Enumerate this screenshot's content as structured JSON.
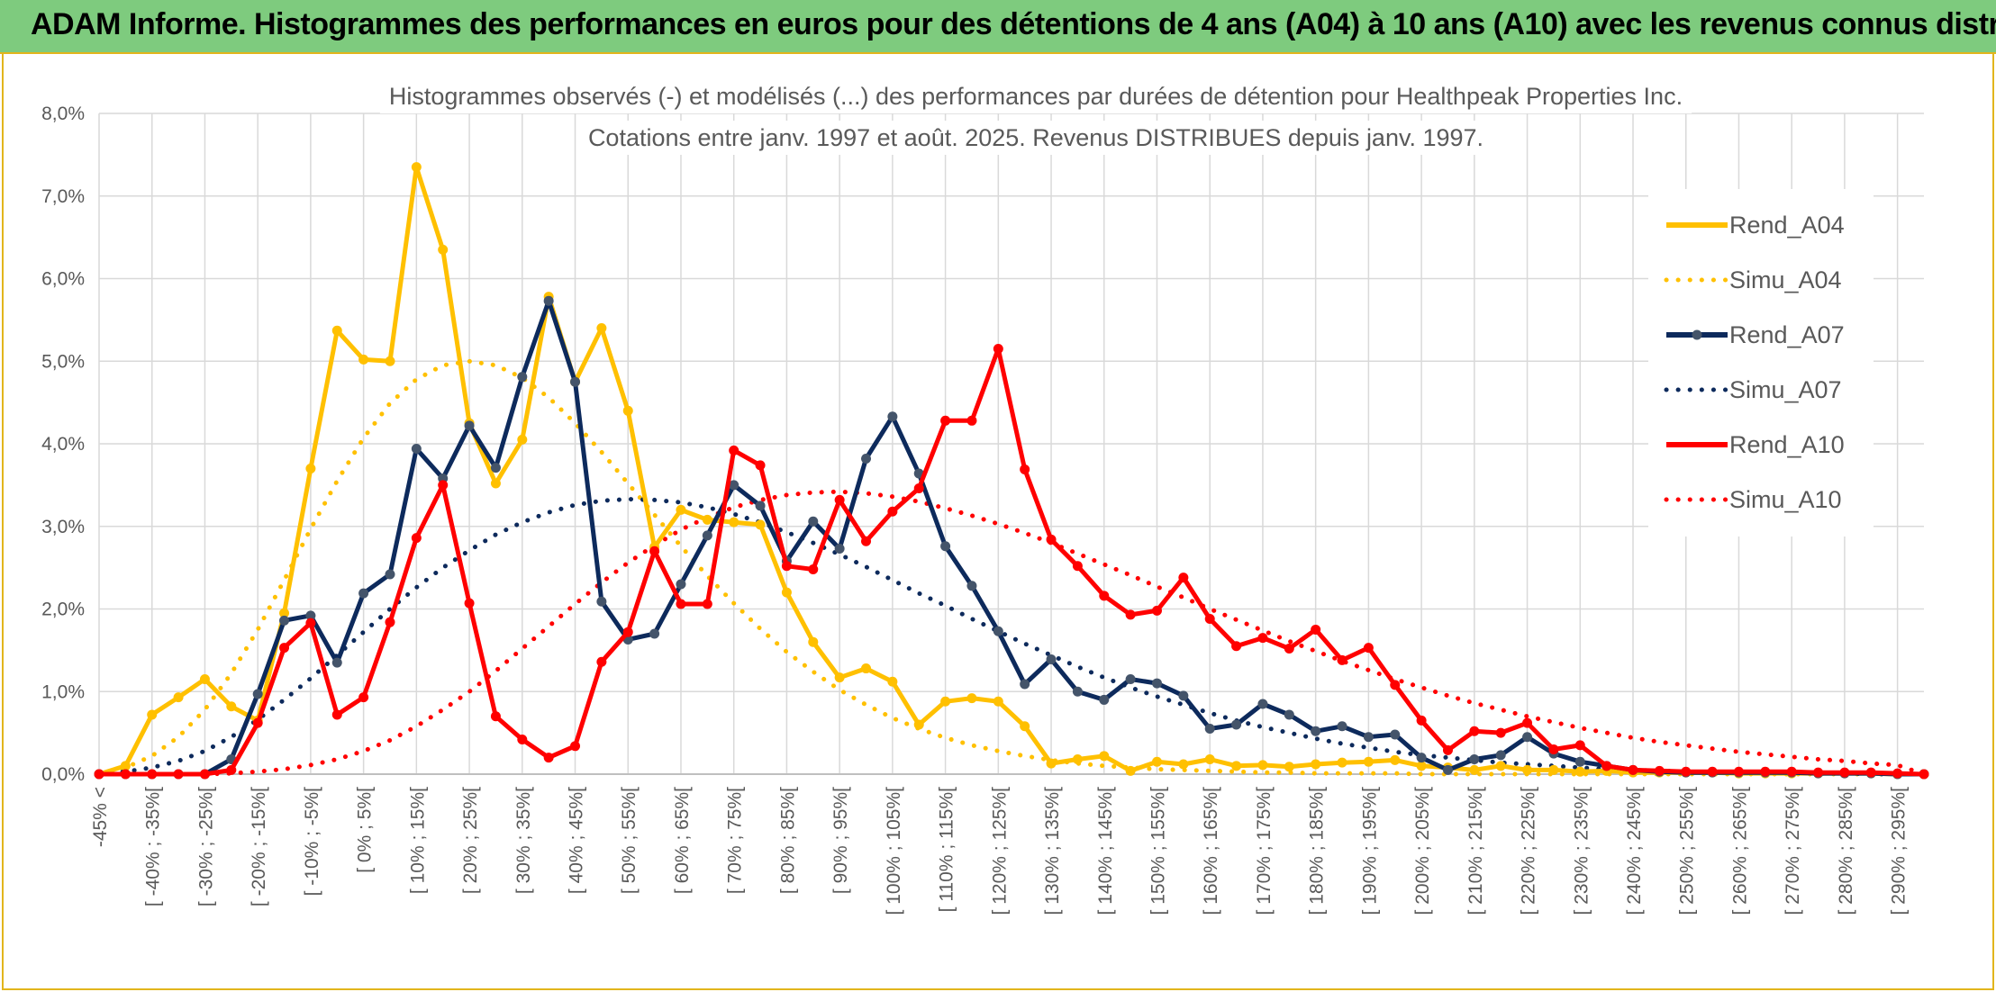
{
  "banner": {
    "title": "ADAM Informe. Histogrammes des performances en euros pour des détentions de 4 ans (A04) à 10 ans (A10) avec les revenus connus distribués"
  },
  "chart_data": {
    "type": "line",
    "title": "Histogrammes observés (-) et modélisés (...) des performances par durées de détention pour Healthpeak Properties Inc.",
    "subtitle": "Cotations entre janv. 1997 et août. 2025. Revenus DISTRIBUES depuis janv. 1997.",
    "ylim": [
      0,
      8
    ],
    "yticks": [
      "0,0%",
      "1,0%",
      "2,0%",
      "3,0%",
      "4,0%",
      "5,0%",
      "6,0%",
      "7,0%",
      "8,0%"
    ],
    "x_tick_labels": [
      "-45% <",
      "[ -40% ; -35%[",
      "[ -30% ; -25%[",
      "[ -20% ; -15%[",
      "[ -10% ; -5%[",
      "[ 0% ; 5%[",
      "[ 10% ; 15%[",
      "[ 20% ; 25%[",
      "[ 30% ; 35%[",
      "[ 40% ; 45%[",
      "[ 50% ; 55%[",
      "[ 60% ; 65%[",
      "[ 70% ; 75%[",
      "[ 80% ; 85%[",
      "[ 90% ; 95%[",
      "[ 100% ; 105%[",
      "[ 110% ; 115%[",
      "[ 120% ; 125%[",
      "[ 130% ; 135%[",
      "[ 140% ; 145%[",
      "[ 150% ; 155%[",
      "[ 160% ; 165%[",
      "[ 170% ; 175%[",
      "[ 180% ; 185%[",
      "[ 190% ; 195%[",
      "[ 200% ; 205%[",
      "[ 210% ; 215%[",
      "[ 220% ; 225%[",
      "[ 230% ; 235%[",
      "[ 240% ; 245%[",
      "[ 250% ; 255%[",
      "[ 260% ; 265%[",
      "[ 270% ; 275%[",
      "[ 280% ; 285%[",
      "[ 290% ; 295%["
    ],
    "grid": true,
    "legend": "right",
    "series": [
      {
        "name": "Rend_A04",
        "color": "#ffc000",
        "style": "solid",
        "values": [
          0.0,
          0.1,
          0.72,
          0.93,
          1.15,
          0.82,
          0.65,
          1.95,
          3.7,
          5.37,
          5.02,
          5.0,
          7.35,
          6.35,
          4.25,
          3.52,
          4.05,
          5.78,
          4.75,
          5.4,
          4.4,
          2.75,
          3.2,
          3.08,
          3.05,
          3.02,
          2.2,
          1.6,
          1.17,
          1.28,
          1.12,
          0.6,
          0.88,
          0.92,
          0.88,
          0.58,
          0.13,
          0.18,
          0.22,
          0.04,
          0.15,
          0.12,
          0.18,
          0.1,
          0.11,
          0.09,
          0.12,
          0.14,
          0.15,
          0.17,
          0.1,
          0.08,
          0.05,
          0.1,
          0.05,
          0.05,
          0.03,
          0.04,
          0.02,
          0.02,
          0.02,
          0.02,
          0.01,
          0.01,
          0.01,
          0.01,
          0.01,
          0.01,
          0.0,
          0.0
        ]
      },
      {
        "name": "Simu_A04",
        "color": "#ffc000",
        "style": "dotted",
        "values": [
          0.0,
          0.08,
          0.22,
          0.45,
          0.78,
          1.22,
          1.75,
          2.35,
          2.97,
          3.55,
          4.07,
          4.49,
          4.78,
          4.95,
          5.0,
          4.95,
          4.8,
          4.56,
          4.25,
          3.9,
          3.52,
          3.14,
          2.76,
          2.4,
          2.07,
          1.76,
          1.48,
          1.24,
          1.02,
          0.84,
          0.68,
          0.55,
          0.44,
          0.35,
          0.28,
          0.22,
          0.17,
          0.13,
          0.1,
          0.08,
          0.06,
          0.05,
          0.04,
          0.03,
          0.02,
          0.02,
          0.01,
          0.01,
          0.01,
          0.01,
          0.0,
          0.0,
          0.0,
          0.0,
          0.0,
          0.0,
          0.0,
          0.0,
          0.0,
          0.0,
          0.0,
          0.0,
          0.0,
          0.0,
          0.0,
          0.0,
          0.0,
          0.0,
          0.0,
          0.0
        ]
      },
      {
        "name": "Rend_A07",
        "color": "#0d2a5c",
        "style": "solid",
        "values": [
          0.0,
          0.0,
          0.0,
          0.0,
          0.0,
          0.18,
          0.97,
          1.86,
          1.92,
          1.35,
          2.19,
          2.42,
          3.94,
          3.58,
          4.22,
          3.71,
          4.81,
          5.73,
          4.75,
          2.09,
          1.63,
          1.7,
          2.3,
          2.89,
          3.5,
          3.25,
          2.58,
          3.06,
          2.73,
          3.82,
          4.33,
          3.64,
          2.76,
          2.28,
          1.73,
          1.09,
          1.39,
          1.0,
          0.9,
          1.15,
          1.1,
          0.95,
          0.55,
          0.6,
          0.85,
          0.72,
          0.52,
          0.58,
          0.45,
          0.48,
          0.2,
          0.05,
          0.18,
          0.23,
          0.45,
          0.25,
          0.15,
          0.1,
          0.05,
          0.03,
          0.02,
          0.02,
          0.02,
          0.02,
          0.02,
          0.01,
          0.01,
          0.01,
          0.0,
          0.0
        ]
      },
      {
        "name": "Simu_A07",
        "color": "#0d2a5c",
        "style": "dotted",
        "values": [
          0.0,
          0.03,
          0.08,
          0.16,
          0.28,
          0.45,
          0.66,
          0.9,
          1.16,
          1.44,
          1.72,
          2.0,
          2.26,
          2.5,
          2.71,
          2.9,
          3.05,
          3.17,
          3.26,
          3.31,
          3.33,
          3.32,
          3.29,
          3.23,
          3.15,
          3.05,
          2.93,
          2.8,
          2.66,
          2.51,
          2.35,
          2.19,
          2.04,
          1.88,
          1.73,
          1.58,
          1.44,
          1.3,
          1.17,
          1.05,
          0.94,
          0.84,
          0.74,
          0.65,
          0.57,
          0.5,
          0.43,
          0.37,
          0.32,
          0.27,
          0.23,
          0.2,
          0.17,
          0.14,
          0.12,
          0.1,
          0.08,
          0.06,
          0.05,
          0.04,
          0.03,
          0.02,
          0.02,
          0.01,
          0.01,
          0.01,
          0.01,
          0.0,
          0.0,
          0.0
        ]
      },
      {
        "name": "Rend_A10",
        "color": "#ff0000",
        "style": "solid",
        "values": [
          0.0,
          0.0,
          0.0,
          0.0,
          0.0,
          0.05,
          0.62,
          1.53,
          1.83,
          0.72,
          0.93,
          1.84,
          2.86,
          3.5,
          2.07,
          0.7,
          0.42,
          0.2,
          0.34,
          1.36,
          1.72,
          2.7,
          2.06,
          2.06,
          3.92,
          3.74,
          2.52,
          2.48,
          3.32,
          2.82,
          3.18,
          3.46,
          4.28,
          4.28,
          5.15,
          3.69,
          2.84,
          2.52,
          2.16,
          1.93,
          1.98,
          2.38,
          1.88,
          1.55,
          1.65,
          1.52,
          1.75,
          1.38,
          1.53,
          1.08,
          0.65,
          0.29,
          0.52,
          0.5,
          0.62,
          0.3,
          0.35,
          0.1,
          0.05,
          0.04,
          0.03,
          0.03,
          0.03,
          0.03,
          0.03,
          0.02,
          0.02,
          0.02,
          0.01,
          0.0
        ]
      },
      {
        "name": "Simu_A10",
        "color": "#ff0000",
        "style": "dotted",
        "values": [
          0.0,
          0.0,
          0.0,
          0.0,
          0.0,
          0.01,
          0.03,
          0.06,
          0.11,
          0.18,
          0.28,
          0.41,
          0.58,
          0.78,
          1.0,
          1.25,
          1.52,
          1.79,
          2.06,
          2.32,
          2.56,
          2.77,
          2.96,
          3.11,
          3.23,
          3.32,
          3.38,
          3.41,
          3.42,
          3.4,
          3.36,
          3.3,
          3.22,
          3.13,
          3.03,
          2.92,
          2.8,
          2.67,
          2.54,
          2.41,
          2.27,
          2.14,
          2.0,
          1.87,
          1.74,
          1.61,
          1.49,
          1.37,
          1.26,
          1.15,
          1.05,
          0.95,
          0.86,
          0.78,
          0.7,
          0.63,
          0.56,
          0.5,
          0.44,
          0.39,
          0.35,
          0.31,
          0.27,
          0.24,
          0.21,
          0.18,
          0.16,
          0.13,
          0.11,
          0.0
        ]
      }
    ]
  }
}
